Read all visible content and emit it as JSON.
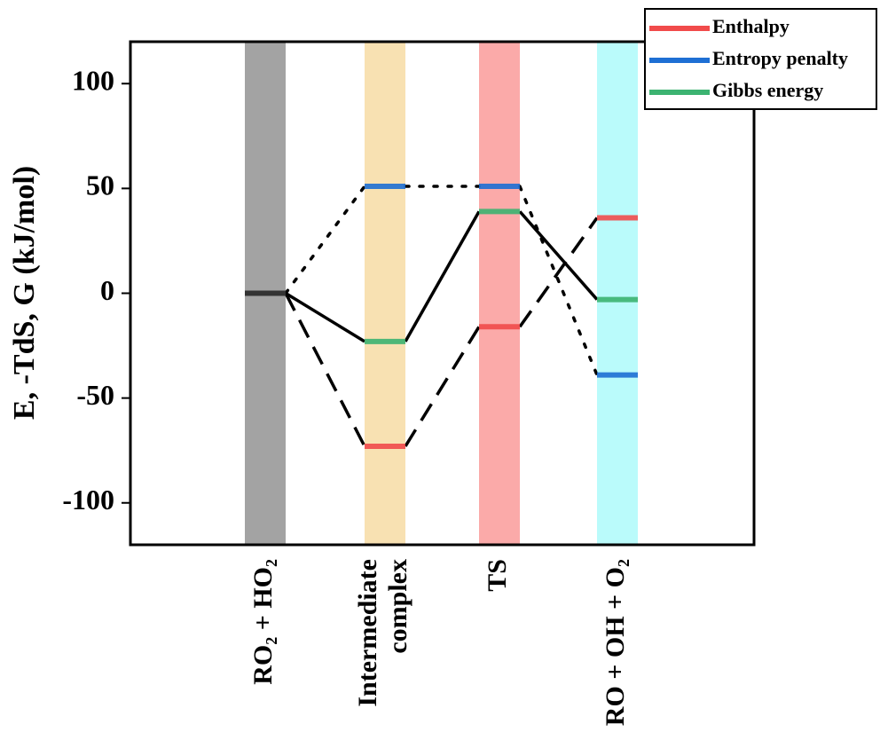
{
  "chart_data": {
    "type": "energy-levels",
    "y_label": "E, -TdS, G (kJ/mol)",
    "categories": [
      "RO₂ + HO₂",
      "Intermediate\ncomplex",
      "TS",
      "RO + OH + O₂"
    ],
    "band_colors": [
      "#999999",
      "#f7deaa",
      "#fba1a0",
      "#b3fbfb"
    ],
    "series": [
      {
        "name": "Enthalpy",
        "color": "#f14b4b",
        "line_style": "dashed",
        "values": [
          0,
          -73,
          -16,
          36
        ]
      },
      {
        "name": "Entropy penalty",
        "color": "#1e6fd4",
        "line_style": "dotted",
        "values": [
          0,
          51,
          51,
          -39
        ]
      },
      {
        "name": "Gibbs energy",
        "color": "#3cb371",
        "line_style": "solid",
        "values": [
          0,
          -23,
          39,
          -3
        ]
      }
    ],
    "ylim": [
      -120,
      120
    ],
    "yticks": [
      -100,
      -50,
      0,
      50,
      100
    ],
    "legend": "top-right"
  }
}
